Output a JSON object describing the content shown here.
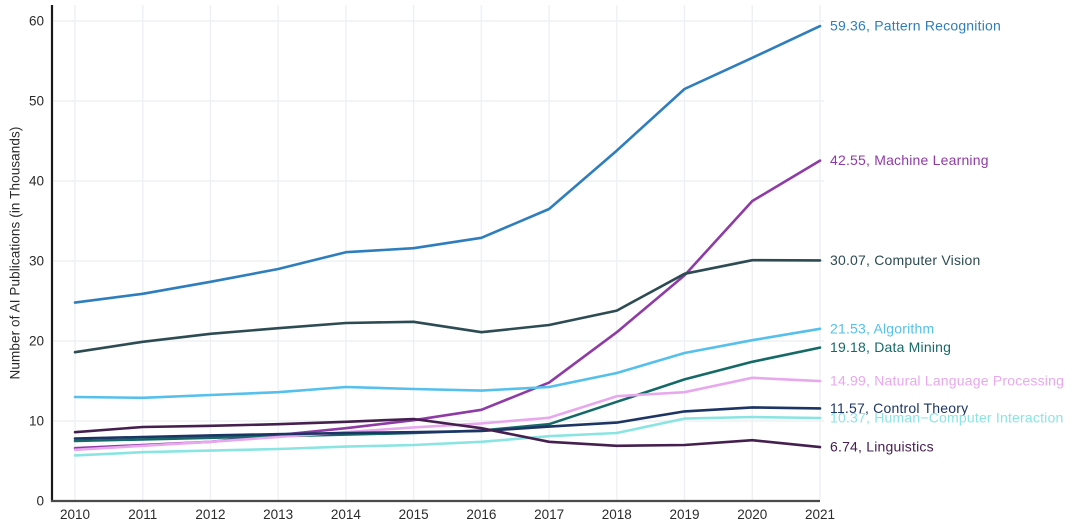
{
  "chart_data": {
    "type": "line",
    "title": "",
    "xlabel": "",
    "ylabel": "Number of AI Publications (in Thousands)",
    "x": [
      2010,
      2011,
      2012,
      2013,
      2014,
      2015,
      2016,
      2017,
      2018,
      2019,
      2020,
      2021
    ],
    "x_tick_labels": [
      "2010",
      "2011",
      "2012",
      "2013",
      "2014",
      "2015",
      "2016",
      "2017",
      "2018",
      "2019",
      "2020",
      "2021"
    ],
    "y_ticks": [
      0,
      10,
      20,
      30,
      40,
      50,
      60
    ],
    "y_tick_labels": [
      "0",
      "10",
      "20",
      "30",
      "40",
      "50",
      "60"
    ],
    "ylim": [
      0,
      62
    ],
    "grid": true,
    "legend_position": "end-of-line annotations, right side",
    "series": [
      {
        "name": "Pattern Recognition",
        "color": "#2e7ebd",
        "end_label": "59.36, Pattern Recognition",
        "end_value": 59.36,
        "values": [
          24.8,
          25.9,
          27.4,
          29.0,
          31.1,
          31.6,
          32.9,
          36.5,
          43.8,
          51.5,
          55.4,
          59.36
        ]
      },
      {
        "name": "Machine Learning",
        "color": "#8f3ba6",
        "end_label": "42.55, Machine Learning",
        "end_value": 42.55,
        "values": [
          6.6,
          7.0,
          7.4,
          8.25,
          9.1,
          10.1,
          11.4,
          14.8,
          21.1,
          28.2,
          37.5,
          42.55
        ]
      },
      {
        "name": "Computer Vision",
        "color": "#2d4b52",
        "end_label": "30.07, Computer Vision",
        "end_value": 30.07,
        "values": [
          18.6,
          19.9,
          20.9,
          21.6,
          22.25,
          22.4,
          21.1,
          22.0,
          23.8,
          28.4,
          30.1,
          30.07
        ]
      },
      {
        "name": "Algorithm",
        "color": "#55c0ec",
        "end_label": "21.53, Algorithm",
        "end_value": 21.53,
        "values": [
          13.0,
          12.9,
          13.25,
          13.6,
          14.25,
          14.0,
          13.8,
          14.25,
          16.0,
          18.5,
          20.1,
          21.53
        ]
      },
      {
        "name": "Data Mining",
        "color": "#156a68",
        "end_label": "19.18, Data Mining",
        "end_value": 19.18,
        "values": [
          7.5,
          7.7,
          7.9,
          8.1,
          8.3,
          8.5,
          8.8,
          9.6,
          12.4,
          15.2,
          17.4,
          19.18
        ]
      },
      {
        "name": "Natural Language Processing",
        "color": "#e8a8ee",
        "end_label": "14.99, Natural Language Processing",
        "end_value": 14.99,
        "values": [
          6.4,
          6.9,
          7.4,
          8.0,
          8.6,
          9.2,
          9.7,
          10.4,
          13.1,
          13.6,
          15.4,
          14.99
        ]
      },
      {
        "name": "Control Theory",
        "color": "#1d3564",
        "end_label": "11.57, Control Theory",
        "end_value": 11.57,
        "values": [
          7.8,
          8.0,
          8.2,
          8.35,
          8.5,
          8.6,
          8.75,
          9.3,
          9.8,
          11.2,
          11.7,
          11.57
        ]
      },
      {
        "name": "Human-Computer Interaction",
        "color": "#8ae5e2",
        "end_label": "10.37, Human−Computer Interaction",
        "end_value": 10.37,
        "values": [
          5.7,
          6.1,
          6.3,
          6.5,
          6.8,
          7.0,
          7.4,
          8.1,
          8.5,
          10.3,
          10.5,
          10.37
        ]
      },
      {
        "name": "Linguistics",
        "color": "#45204e",
        "end_label": "6.74, Linguistics",
        "end_value": 6.74,
        "values": [
          8.6,
          9.25,
          9.4,
          9.6,
          9.9,
          10.25,
          9.1,
          7.4,
          6.9,
          7.0,
          7.6,
          6.74
        ]
      }
    ],
    "style": {
      "grid_color": "#eef0f3",
      "left_spine_color": "#1a1a1a",
      "bottom_spine_color": "#4a4a4a",
      "tick_label_color": "#2b2b2b",
      "background": "#ffffff"
    }
  }
}
